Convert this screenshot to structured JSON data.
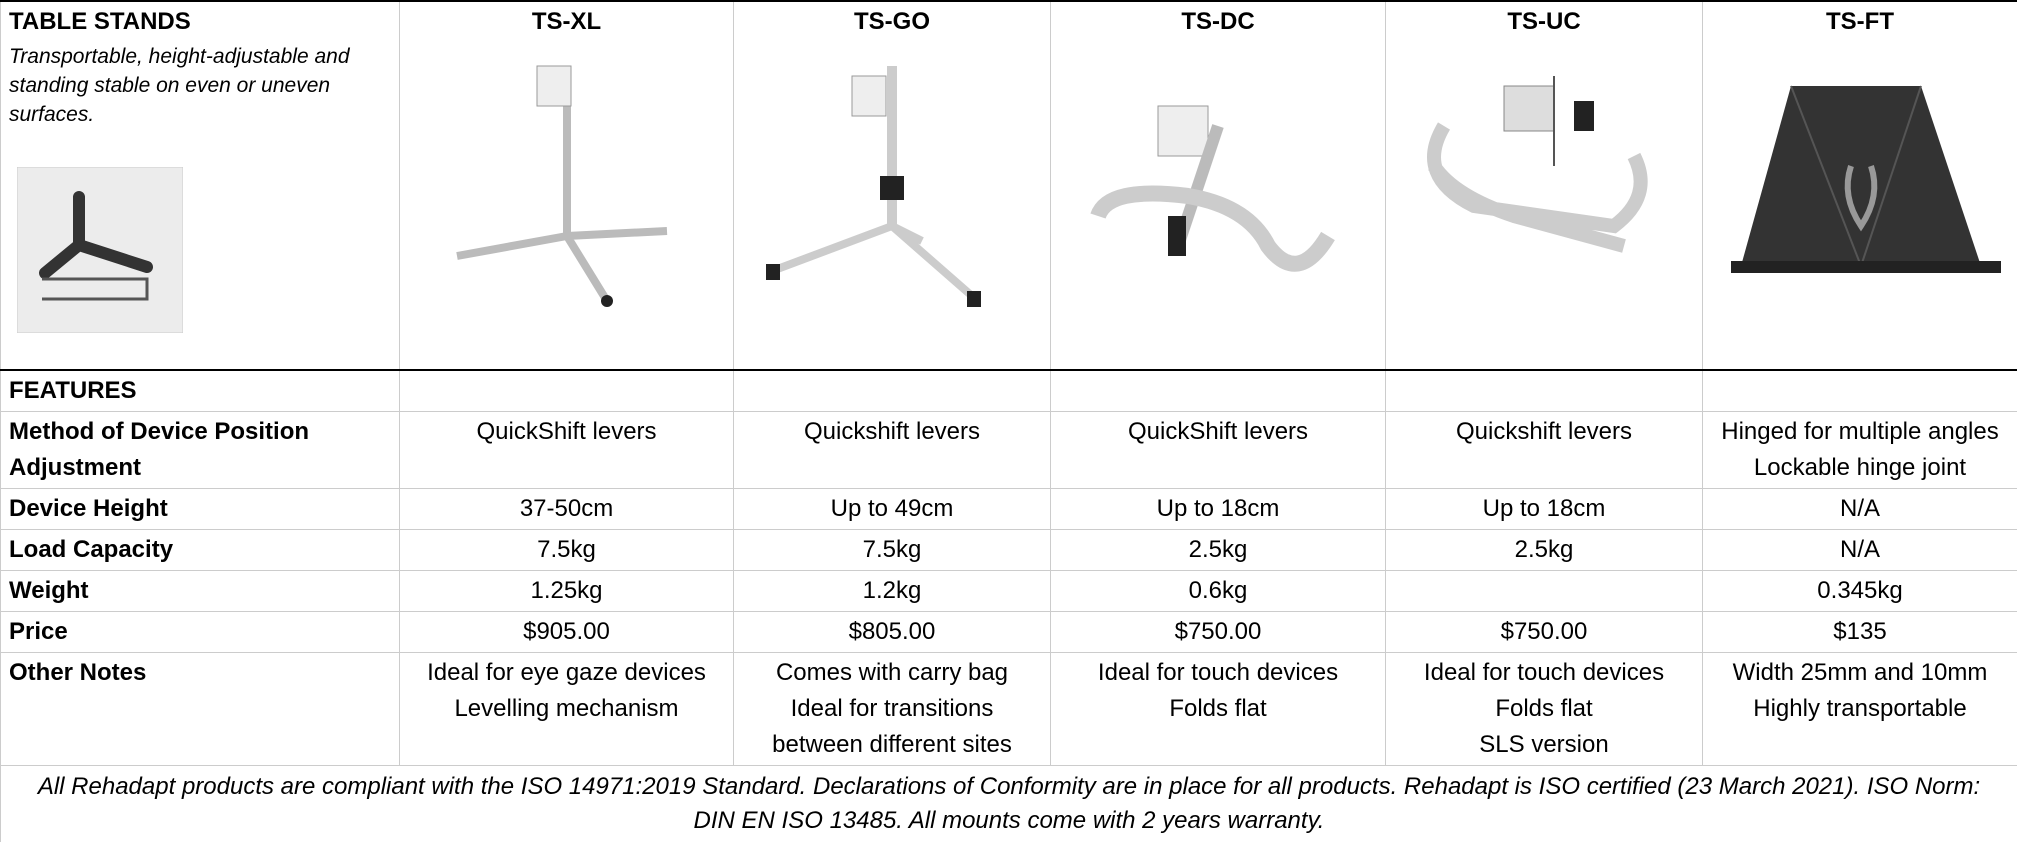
{
  "header": {
    "title": "TABLE STANDS",
    "subtitle": "Transportable, height-adjustable and standing stable on even or uneven surfaces."
  },
  "products": [
    "TS-XL",
    "TS-GO",
    "TS-DC",
    "TS-UC",
    "TS-FT"
  ],
  "features_label": "FEATURES",
  "rows": [
    {
      "label": "Method of Device Position Adjustment",
      "cells": [
        [
          "QuickShift levers"
        ],
        [
          "Quickshift levers"
        ],
        [
          "QuickShift levers"
        ],
        [
          "Quickshift levers"
        ],
        [
          "Hinged for multiple angles",
          "Lockable hinge joint"
        ]
      ]
    },
    {
      "label": "Device Height",
      "cells": [
        [
          "37-50cm"
        ],
        [
          "Up to 49cm"
        ],
        [
          "Up to 18cm"
        ],
        [
          "Up to 18cm"
        ],
        [
          "N/A"
        ]
      ]
    },
    {
      "label": "Load Capacity",
      "cells": [
        [
          "7.5kg"
        ],
        [
          "7.5kg"
        ],
        [
          "2.5kg"
        ],
        [
          "2.5kg"
        ],
        [
          "N/A"
        ]
      ]
    },
    {
      "label": "Weight",
      "cells": [
        [
          "1.25kg"
        ],
        [
          "1.2kg"
        ],
        [
          "0.6kg"
        ],
        [],
        [
          "0.345kg"
        ]
      ]
    },
    {
      "label": "Price",
      "cells": [
        [
          "$905.00"
        ],
        [
          "$805.00"
        ],
        [
          "$750.00"
        ],
        [
          "$750.00"
        ],
        [
          "$135"
        ]
      ]
    },
    {
      "label": "Other Notes",
      "cells": [
        [
          "Ideal for eye gaze devices",
          "Levelling mechanism"
        ],
        [
          "Comes with carry bag",
          "Ideal for transitions between different sites"
        ],
        [
          "Ideal for touch devices",
          "Folds flat"
        ],
        [
          "Ideal for touch devices",
          "Folds flat",
          "SLS version"
        ],
        [
          "Width 25mm and 10mm",
          "Highly transportable"
        ]
      ]
    }
  ],
  "footer": "All Rehadapt products are compliant with the ISO 14971:2019 Standard. Declarations of Conformity are in place for all products. Rehadapt is ISO certified (23 March 2021). ISO Norm: DIN EN ISO 13485. All mounts come with 2 years warranty."
}
